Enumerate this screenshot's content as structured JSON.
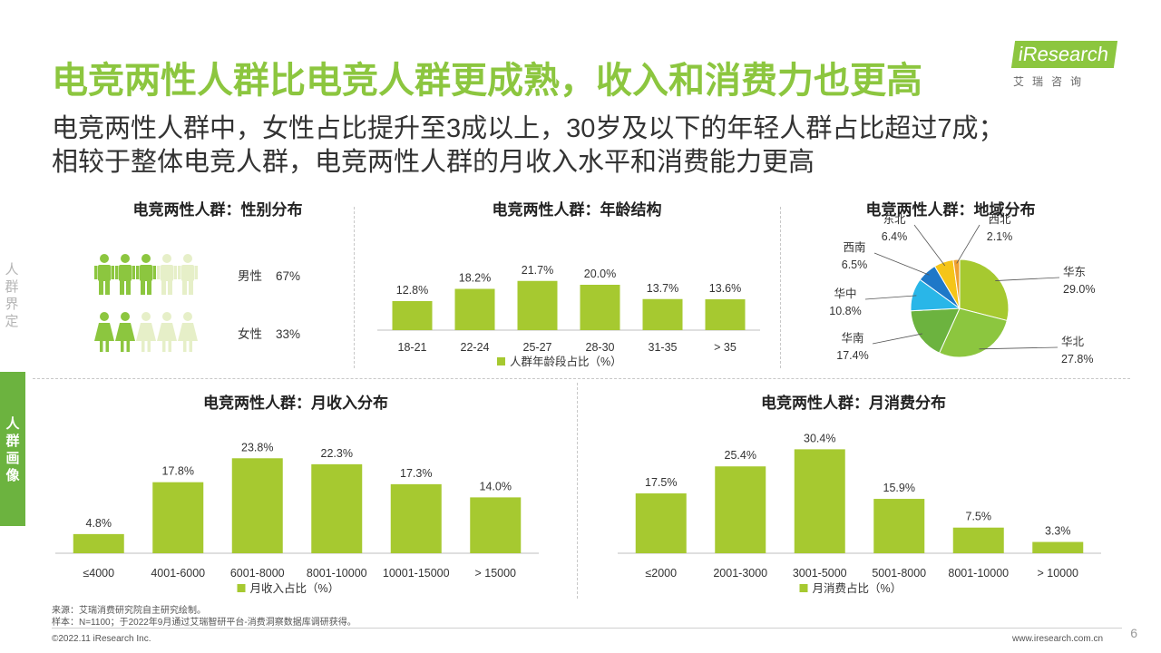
{
  "header": {
    "title": "电竞两性人群比电竞人群更成熟，收入和消费力也更高",
    "subtitle_line1": "电竞两性人群中，女性占比提升至3成以上，30岁及以下的年轻人群占比超过7成；",
    "subtitle_line2": "相较于整体电竞人群，电竞两性人群的月收入水平和消费能力更高",
    "logo": "iResearch",
    "logo_sub": "艾瑞咨询"
  },
  "side": {
    "upper_label": "人群界定",
    "tab_label": "人群画像"
  },
  "colors": {
    "accent": "#8cc63f",
    "bar": "#a6c930",
    "tab": "#6cb33f",
    "icon_muted": "#e6efc8"
  },
  "chart_data": [
    {
      "type": "pictogram",
      "title": "电竞两性人群：性别分布",
      "items": [
        {
          "label": "男性",
          "value": 67,
          "display": "67%",
          "icon": "male-person-icon"
        },
        {
          "label": "女性",
          "value": 33,
          "display": "33%",
          "icon": "female-person-icon"
        }
      ]
    },
    {
      "type": "bar",
      "title": "电竞两性人群：年龄结构",
      "categories": [
        "18-21",
        "22-24",
        "25-27",
        "28-30",
        "31-35",
        "> 35"
      ],
      "values": [
        12.8,
        18.2,
        21.7,
        20.0,
        13.7,
        13.6
      ],
      "labels": [
        "12.8%",
        "18.2%",
        "21.7%",
        "20.0%",
        "13.7%",
        "13.6%"
      ],
      "legend": "人群年龄段占比（%）",
      "ylim": [
        0,
        30
      ]
    },
    {
      "type": "pie",
      "title": "电竞两性人群：地域分布",
      "slices": [
        {
          "name": "华东",
          "value": 29.0,
          "display": "29.0%",
          "color": "#a6c930"
        },
        {
          "name": "华北",
          "value": 27.8,
          "display": "27.8%",
          "color": "#8cc63f"
        },
        {
          "name": "华南",
          "value": 17.4,
          "display": "17.4%",
          "color": "#6cb33f"
        },
        {
          "name": "华中",
          "value": 10.8,
          "display": "10.8%",
          "color": "#29b6e8"
        },
        {
          "name": "西南",
          "value": 6.5,
          "display": "6.5%",
          "color": "#1e78c8"
        },
        {
          "name": "东北",
          "value": 6.4,
          "display": "6.4%",
          "color": "#f5c518"
        },
        {
          "name": "西北",
          "value": 2.1,
          "display": "2.1%",
          "color": "#f0a030"
        }
      ]
    },
    {
      "type": "bar",
      "title": "电竞两性人群：月收入分布",
      "categories": [
        "≤4000",
        "4001-6000",
        "6001-8000",
        "8001-10000",
        "10001-15000",
        "> 15000"
      ],
      "values": [
        4.8,
        17.8,
        23.8,
        22.3,
        17.3,
        14.0
      ],
      "labels": [
        "4.8%",
        "17.8%",
        "23.8%",
        "22.3%",
        "17.3%",
        "14.0%"
      ],
      "legend": "月收入占比（%）",
      "ylim": [
        0,
        30
      ]
    },
    {
      "type": "bar",
      "title": "电竞两性人群：月消费分布",
      "categories": [
        "≤2000",
        "2001-3000",
        "3001-5000",
        "5001-8000",
        "8001-10000",
        "> 10000"
      ],
      "values": [
        17.5,
        25.4,
        30.4,
        15.9,
        7.5,
        3.3
      ],
      "labels": [
        "17.5%",
        "25.4%",
        "30.4%",
        "15.9%",
        "7.5%",
        "3.3%"
      ],
      "legend": "月消费占比（%）",
      "ylim": [
        0,
        36
      ]
    }
  ],
  "footer": {
    "source": "来源：艾瑞消费研究院自主研究绘制。",
    "sample": "样本：N=1100；于2022年9月通过艾瑞智研平台-消费洞察数据库调研获得。",
    "copyright": "©2022.11 iResearch Inc.",
    "website": "www.iresearch.com.cn",
    "page_number": "6"
  }
}
